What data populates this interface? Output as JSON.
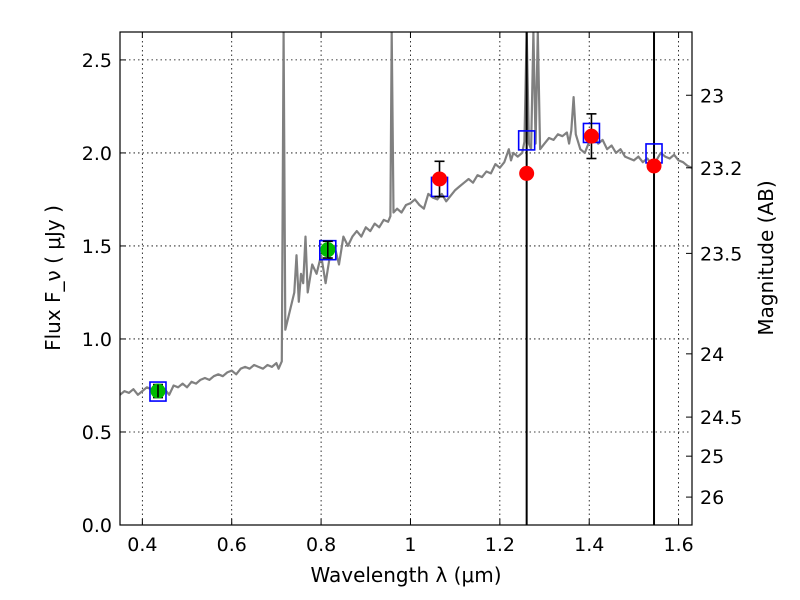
{
  "chart_data": {
    "type": "scatter",
    "xlabel": "Wavelength  λ (μm)",
    "ylabel": "Flux  F_ν  ( μJy )",
    "ylabel_right": "Magnitude (AB)",
    "xlim": [
      0.35,
      1.63
    ],
    "ylim": [
      0.0,
      2.65
    ],
    "grid": true,
    "x_ticks": [
      0.4,
      0.6,
      0.8,
      1.0,
      1.2,
      1.4,
      1.6
    ],
    "x_tick_labels": [
      "0.4",
      "0.6",
      "0.8",
      "1",
      "1.2",
      "1.4",
      "1.6"
    ],
    "y_ticks": [
      0.0,
      0.5,
      1.0,
      1.5,
      2.0,
      2.5
    ],
    "y_tick_labels": [
      "0.0",
      "0.5",
      "1.0",
      "1.5",
      "2.0",
      "2.5"
    ],
    "right_ticks": [
      {
        "label": "23",
        "flux": 2.31
      },
      {
        "label": "23.2",
        "flux": 1.92
      },
      {
        "label": "23.5",
        "flux": 1.46
      },
      {
        "label": "24",
        "flux": 0.92
      },
      {
        "label": "24.5",
        "flux": 0.58
      },
      {
        "label": "25",
        "flux": 0.37
      },
      {
        "label": "26",
        "flux": 0.15
      }
    ],
    "vertical_lines": [
      1.26,
      1.545
    ],
    "colors": {
      "model": "#808080",
      "model_points": "#0000ff",
      "observed_green": "#00bb00",
      "observed_red": "#ff0000",
      "errorbar": "#000000",
      "vline": "#000000"
    },
    "model_band_points": [
      {
        "x": 0.435,
        "y": 0.72
      },
      {
        "x": 0.815,
        "y": 1.48
      },
      {
        "x": 1.065,
        "y": 1.82
      },
      {
        "x": 1.26,
        "y": 2.07
      },
      {
        "x": 1.405,
        "y": 2.11
      },
      {
        "x": 1.545,
        "y": 2.0
      }
    ],
    "observed_points": [
      {
        "x": 0.435,
        "y": 0.72,
        "err": 0.035,
        "color": "green"
      },
      {
        "x": 0.815,
        "y": 1.48,
        "err": 0.045,
        "color": "green"
      },
      {
        "x": 1.065,
        "y": 1.86,
        "err": 0.095,
        "color": "red"
      },
      {
        "x": 1.26,
        "y": 1.89,
        "err": 0.0,
        "color": "red"
      },
      {
        "x": 1.405,
        "y": 2.09,
        "err": 0.12,
        "color": "red"
      },
      {
        "x": 1.545,
        "y": 1.93,
        "err": 0.0,
        "color": "red"
      }
    ],
    "model_spectrum": [
      [
        0.35,
        0.7
      ],
      [
        0.36,
        0.72
      ],
      [
        0.37,
        0.71
      ],
      [
        0.38,
        0.73
      ],
      [
        0.39,
        0.7
      ],
      [
        0.4,
        0.72
      ],
      [
        0.41,
        0.74
      ],
      [
        0.42,
        0.73
      ],
      [
        0.43,
        0.74
      ],
      [
        0.44,
        0.71
      ],
      [
        0.45,
        0.73
      ],
      [
        0.46,
        0.7
      ],
      [
        0.47,
        0.75
      ],
      [
        0.48,
        0.74
      ],
      [
        0.49,
        0.76
      ],
      [
        0.5,
        0.74
      ],
      [
        0.51,
        0.77
      ],
      [
        0.52,
        0.76
      ],
      [
        0.53,
        0.78
      ],
      [
        0.54,
        0.79
      ],
      [
        0.55,
        0.78
      ],
      [
        0.56,
        0.8
      ],
      [
        0.57,
        0.81
      ],
      [
        0.58,
        0.8
      ],
      [
        0.59,
        0.82
      ],
      [
        0.6,
        0.83
      ],
      [
        0.61,
        0.81
      ],
      [
        0.62,
        0.84
      ],
      [
        0.63,
        0.85
      ],
      [
        0.64,
        0.84
      ],
      [
        0.65,
        0.86
      ],
      [
        0.66,
        0.85
      ],
      [
        0.67,
        0.84
      ],
      [
        0.68,
        0.86
      ],
      [
        0.69,
        0.85
      ],
      [
        0.7,
        0.87
      ],
      [
        0.705,
        0.84
      ],
      [
        0.712,
        0.88
      ],
      [
        0.716,
        2.65
      ],
      [
        0.72,
        1.05
      ],
      [
        0.73,
        1.15
      ],
      [
        0.74,
        1.25
      ],
      [
        0.745,
        1.45
      ],
      [
        0.75,
        1.2
      ],
      [
        0.755,
        1.35
      ],
      [
        0.76,
        1.3
      ],
      [
        0.765,
        1.55
      ],
      [
        0.77,
        1.25
      ],
      [
        0.78,
        1.4
      ],
      [
        0.79,
        1.35
      ],
      [
        0.8,
        1.45
      ],
      [
        0.81,
        1.3
      ],
      [
        0.82,
        1.45
      ],
      [
        0.83,
        1.5
      ],
      [
        0.84,
        1.4
      ],
      [
        0.85,
        1.55
      ],
      [
        0.86,
        1.5
      ],
      [
        0.87,
        1.55
      ],
      [
        0.88,
        1.58
      ],
      [
        0.89,
        1.55
      ],
      [
        0.9,
        1.6
      ],
      [
        0.91,
        1.58
      ],
      [
        0.92,
        1.62
      ],
      [
        0.93,
        1.6
      ],
      [
        0.94,
        1.64
      ],
      [
        0.95,
        1.63
      ],
      [
        0.955,
        1.66
      ],
      [
        0.958,
        2.65
      ],
      [
        0.962,
        1.68
      ],
      [
        0.97,
        1.7
      ],
      [
        0.98,
        1.68
      ],
      [
        0.99,
        1.72
      ],
      [
        1.0,
        1.73
      ],
      [
        1.01,
        1.75
      ],
      [
        1.02,
        1.72
      ],
      [
        1.03,
        1.7
      ],
      [
        1.04,
        1.78
      ],
      [
        1.05,
        1.76
      ],
      [
        1.06,
        1.75
      ],
      [
        1.07,
        1.78
      ],
      [
        1.08,
        1.74
      ],
      [
        1.09,
        1.77
      ],
      [
        1.1,
        1.8
      ],
      [
        1.11,
        1.82
      ],
      [
        1.12,
        1.84
      ],
      [
        1.13,
        1.86
      ],
      [
        1.14,
        1.84
      ],
      [
        1.15,
        1.88
      ],
      [
        1.16,
        1.87
      ],
      [
        1.17,
        1.9
      ],
      [
        1.18,
        1.89
      ],
      [
        1.19,
        1.94
      ],
      [
        1.2,
        1.92
      ],
      [
        1.21,
        1.95
      ],
      [
        1.22,
        2.02
      ],
      [
        1.225,
        1.96
      ],
      [
        1.23,
        2.0
      ],
      [
        1.24,
        1.98
      ],
      [
        1.25,
        2.0
      ],
      [
        1.255,
        2.06
      ],
      [
        1.26,
        2.65
      ],
      [
        1.265,
        2.05
      ],
      [
        1.27,
        2.02
      ],
      [
        1.275,
        2.65
      ],
      [
        1.28,
        2.05
      ],
      [
        1.285,
        2.65
      ],
      [
        1.29,
        2.02
      ],
      [
        1.3,
        2.05
      ],
      [
        1.31,
        2.08
      ],
      [
        1.32,
        2.07
      ],
      [
        1.33,
        2.1
      ],
      [
        1.34,
        2.09
      ],
      [
        1.35,
        2.11
      ],
      [
        1.355,
        2.05
      ],
      [
        1.36,
        2.12
      ],
      [
        1.365,
        2.3
      ],
      [
        1.37,
        2.1
      ],
      [
        1.38,
        2.02
      ],
      [
        1.39,
        2.0
      ],
      [
        1.4,
        2.06
      ],
      [
        1.41,
        2.1
      ],
      [
        1.42,
        2.05
      ],
      [
        1.43,
        2.07
      ],
      [
        1.44,
        2.02
      ],
      [
        1.45,
        2.04
      ],
      [
        1.46,
        2.0
      ],
      [
        1.47,
        2.02
      ],
      [
        1.48,
        1.98
      ],
      [
        1.49,
        1.97
      ],
      [
        1.5,
        1.96
      ],
      [
        1.51,
        1.98
      ],
      [
        1.52,
        1.95
      ],
      [
        1.53,
        1.97
      ],
      [
        1.54,
        1.94
      ],
      [
        1.55,
        1.96
      ],
      [
        1.56,
        2.0
      ],
      [
        1.57,
        1.98
      ],
      [
        1.58,
        1.97
      ],
      [
        1.59,
        1.99
      ],
      [
        1.6,
        1.96
      ],
      [
        1.61,
        1.95
      ],
      [
        1.62,
        1.93
      ],
      [
        1.63,
        1.92
      ]
    ]
  }
}
